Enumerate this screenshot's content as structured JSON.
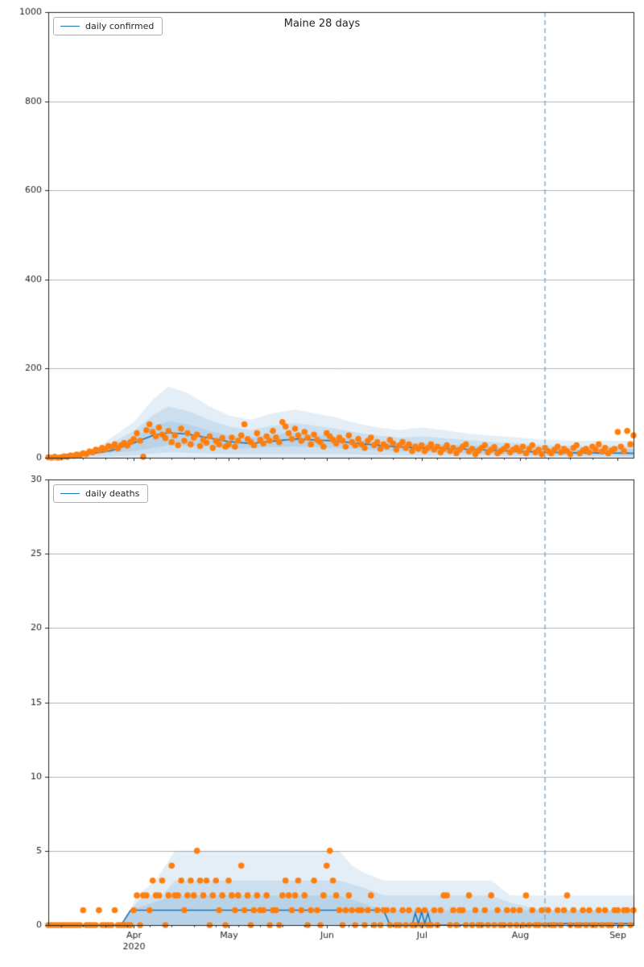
{
  "colors": {
    "line": "#1f77b4",
    "scatter": "#ff7f0e",
    "band": "#1f77b4",
    "vline": "#74a4c8",
    "grid": "#b0b0b0",
    "axis": "#262626",
    "text": "#262626"
  },
  "chart_data": [
    {
      "type": "line+scatter+band",
      "title": "Maine 28 days",
      "legend_label": "daily confirmed",
      "ylim": [
        0,
        1000
      ],
      "yticks": [
        0,
        200,
        400,
        600,
        800,
        1000
      ],
      "x_start_date": "2020-03-05",
      "x_max_day": 185,
      "x_major_ticks": [
        {
          "day": 27,
          "label": "Apr"
        },
        {
          "day": 57,
          "label": "May"
        },
        {
          "day": 88,
          "label": "Jun"
        },
        {
          "day": 118,
          "label": "Jul"
        },
        {
          "day": 149,
          "label": "Aug"
        },
        {
          "day": 180,
          "label": "Sep"
        }
      ],
      "x_year_label": "2020",
      "vline_day": 157,
      "scatter": [
        1,
        0,
        2,
        0,
        1,
        3,
        2,
        5,
        4,
        7,
        6,
        10,
        8,
        14,
        12,
        18,
        16,
        22,
        19,
        26,
        24,
        30,
        21,
        28,
        33,
        27,
        35,
        42,
        55,
        38,
        2,
        62,
        75,
        58,
        48,
        68,
        52,
        44,
        60,
        35,
        50,
        28,
        65,
        38,
        55,
        30,
        45,
        52,
        26,
        40,
        34,
        48,
        22,
        38,
        30,
        44,
        25,
        30,
        45,
        25,
        38,
        50,
        75,
        42,
        35,
        28,
        55,
        40,
        32,
        48,
        38,
        60,
        45,
        35,
        80,
        70,
        55,
        42,
        65,
        50,
        38,
        58,
        45,
        30,
        52,
        40,
        35,
        25,
        55,
        48,
        40,
        32,
        45,
        38,
        25,
        50,
        35,
        28,
        42,
        30,
        22,
        38,
        45,
        28,
        35,
        20,
        30,
        25,
        40,
        32,
        18,
        28,
        35,
        22,
        30,
        15,
        25,
        20,
        28,
        15,
        22,
        30,
        18,
        25,
        12,
        20,
        28,
        15,
        22,
        10,
        18,
        25,
        30,
        14,
        20,
        8,
        16,
        22,
        28,
        12,
        18,
        24,
        10,
        15,
        20,
        26,
        12,
        18,
        22,
        15,
        25,
        10,
        20,
        28,
        12,
        18,
        8,
        22,
        15,
        10,
        18,
        25,
        12,
        20,
        15,
        8,
        22,
        28,
        10,
        16,
        20,
        12,
        25,
        18,
        30,
        14,
        22,
        10,
        16,
        20,
        58,
        25,
        15,
        60,
        30,
        50
      ],
      "mean": [
        [
          0,
          1
        ],
        [
          10,
          5
        ],
        [
          20,
          16
        ],
        [
          27,
          33
        ],
        [
          33,
          50
        ],
        [
          38,
          56
        ],
        [
          44,
          53
        ],
        [
          51,
          44
        ],
        [
          57,
          36
        ],
        [
          64,
          32
        ],
        [
          71,
          37
        ],
        [
          78,
          42
        ],
        [
          84,
          40
        ],
        [
          90,
          38
        ],
        [
          97,
          33
        ],
        [
          104,
          28
        ],
        [
          111,
          24
        ],
        [
          118,
          22
        ],
        [
          125,
          21
        ],
        [
          132,
          19
        ],
        [
          139,
          17
        ],
        [
          149,
          14
        ],
        [
          157,
          12
        ],
        [
          168,
          11
        ],
        [
          185,
          10
        ]
      ],
      "bands": [
        {
          "upper": [
            [
              0,
              3
            ],
            [
              15,
              20
            ],
            [
              27,
              80
            ],
            [
              33,
              130
            ],
            [
              38,
              160
            ],
            [
              44,
              145
            ],
            [
              51,
              115
            ],
            [
              57,
              95
            ],
            [
              64,
              85
            ],
            [
              71,
              100
            ],
            [
              78,
              108
            ],
            [
              84,
              100
            ],
            [
              90,
              92
            ],
            [
              97,
              78
            ],
            [
              104,
              68
            ],
            [
              111,
              62
            ],
            [
              118,
              68
            ],
            [
              125,
              62
            ],
            [
              132,
              55
            ],
            [
              139,
              50
            ],
            [
              149,
              45
            ],
            [
              157,
              40
            ],
            [
              168,
              38
            ],
            [
              185,
              38
            ]
          ],
          "lower": [
            [
              0,
              0
            ],
            [
              185,
              0
            ]
          ]
        },
        {
          "upper": [
            [
              0,
              2
            ],
            [
              15,
              13
            ],
            [
              27,
              60
            ],
            [
              33,
              95
            ],
            [
              38,
              115
            ],
            [
              44,
              105
            ],
            [
              51,
              85
            ],
            [
              57,
              70
            ],
            [
              64,
              62
            ],
            [
              71,
              72
            ],
            [
              78,
              78
            ],
            [
              84,
              72
            ],
            [
              90,
              66
            ],
            [
              97,
              57
            ],
            [
              104,
              50
            ],
            [
              111,
              45
            ],
            [
              118,
              48
            ],
            [
              125,
              44
            ],
            [
              132,
              40
            ],
            [
              139,
              36
            ],
            [
              149,
              32
            ],
            [
              157,
              28
            ],
            [
              168,
              26
            ],
            [
              185,
              26
            ]
          ],
          "lower": [
            [
              0,
              0
            ],
            [
              27,
              5
            ],
            [
              38,
              12
            ],
            [
              57,
              8
            ],
            [
              90,
              8
            ],
            [
              118,
              5
            ],
            [
              185,
              2
            ]
          ]
        },
        {
          "upper": [
            [
              0,
              1
            ],
            [
              15,
              9
            ],
            [
              27,
              45
            ],
            [
              33,
              70
            ],
            [
              38,
              82
            ],
            [
              44,
              75
            ],
            [
              51,
              60
            ],
            [
              57,
              50
            ],
            [
              64,
              45
            ],
            [
              71,
              52
            ],
            [
              78,
              56
            ],
            [
              84,
              52
            ],
            [
              90,
              48
            ],
            [
              97,
              42
            ],
            [
              104,
              36
            ],
            [
              111,
              32
            ],
            [
              118,
              33
            ],
            [
              125,
              30
            ],
            [
              132,
              28
            ],
            [
              139,
              25
            ],
            [
              149,
              22
            ],
            [
              157,
              20
            ],
            [
              168,
              19
            ],
            [
              185,
              19
            ]
          ],
          "lower": [
            [
              0,
              0
            ],
            [
              27,
              15
            ],
            [
              38,
              28
            ],
            [
              51,
              25
            ],
            [
              57,
              20
            ],
            [
              78,
              25
            ],
            [
              90,
              22
            ],
            [
              118,
              12
            ],
            [
              149,
              7
            ],
            [
              185,
              5
            ]
          ]
        }
      ]
    },
    {
      "type": "line+scatter+band",
      "title": "",
      "legend_label": "daily deaths",
      "ylim": [
        0,
        30
      ],
      "yticks": [
        0,
        5,
        10,
        15,
        20,
        25,
        30
      ],
      "x_start_date": "2020-03-05",
      "x_max_day": 185,
      "x_major_ticks": [
        {
          "day": 27,
          "label": "Apr"
        },
        {
          "day": 57,
          "label": "May"
        },
        {
          "day": 88,
          "label": "Jun"
        },
        {
          "day": 118,
          "label": "Jul"
        },
        {
          "day": 149,
          "label": "Aug"
        },
        {
          "day": 180,
          "label": "Sep"
        }
      ],
      "x_year_label": "2020",
      "vline_day": 157,
      "scatter": [
        0,
        0,
        0,
        0,
        0,
        0,
        0,
        0,
        0,
        0,
        0,
        1,
        0,
        0,
        0,
        0,
        1,
        0,
        0,
        0,
        0,
        1,
        0,
        0,
        0,
        0,
        0,
        1,
        2,
        0,
        2,
        2,
        1,
        3,
        2,
        2,
        3,
        0,
        2,
        4,
        2,
        2,
        3,
        1,
        2,
        3,
        2,
        5,
        3,
        2,
        3,
        0,
        2,
        3,
        1,
        2,
        0,
        3,
        2,
        1,
        2,
        4,
        1,
        2,
        0,
        1,
        2,
        1,
        1,
        2,
        0,
        1,
        1,
        0,
        2,
        3,
        2,
        1,
        2,
        3,
        1,
        2,
        0,
        1,
        3,
        1,
        0,
        2,
        4,
        5,
        3,
        2,
        1,
        0,
        1,
        2,
        1,
        0,
        1,
        1,
        0,
        1,
        2,
        0,
        1,
        0,
        1,
        1,
        0,
        1,
        0,
        0,
        1,
        0,
        1,
        0,
        0,
        1,
        0,
        1,
        0,
        0,
        1,
        0,
        1,
        2,
        2,
        0,
        1,
        0,
        1,
        1,
        0,
        2,
        0,
        1,
        0,
        0,
        1,
        0,
        2,
        0,
        1,
        0,
        0,
        1,
        0,
        1,
        0,
        1,
        0,
        2,
        0,
        1,
        0,
        0,
        1,
        0,
        1,
        0,
        0,
        1,
        0,
        1,
        2,
        0,
        1,
        0,
        0,
        1,
        0,
        1,
        0,
        0,
        1,
        0,
        1,
        0,
        0,
        1,
        1,
        0,
        1,
        1,
        0,
        1
      ],
      "mean": [
        [
          0,
          0
        ],
        [
          23,
          0
        ],
        [
          26,
          1
        ],
        [
          106,
          1
        ],
        [
          108,
          0
        ],
        [
          115,
          0
        ],
        [
          116,
          0.8
        ],
        [
          117,
          0.1
        ],
        [
          118,
          0.9
        ],
        [
          119,
          0.1
        ],
        [
          120,
          0.8
        ],
        [
          121,
          0
        ],
        [
          149,
          0
        ],
        [
          157,
          0.1
        ],
        [
          185,
          0.1
        ]
      ],
      "bands": [
        {
          "upper": [
            [
              0,
              0
            ],
            [
              23,
              0
            ],
            [
              26,
              1
            ],
            [
              28,
              2
            ],
            [
              34,
              3
            ],
            [
              40,
              5
            ],
            [
              92,
              5
            ],
            [
              96,
              4
            ],
            [
              100,
              3.5
            ],
            [
              106,
              3
            ],
            [
              140,
              3
            ],
            [
              146,
              2
            ],
            [
              185,
              2
            ]
          ],
          "lower": [
            [
              0,
              0
            ],
            [
              185,
              0
            ]
          ]
        },
        {
          "upper": [
            [
              0,
              0
            ],
            [
              23,
              0
            ],
            [
              26,
              1
            ],
            [
              30,
              2
            ],
            [
              36,
              2
            ],
            [
              40,
              3
            ],
            [
              92,
              3
            ],
            [
              100,
              2.5
            ],
            [
              106,
              2
            ],
            [
              140,
              2
            ],
            [
              146,
              1.5
            ],
            [
              157,
              1
            ],
            [
              185,
              1
            ]
          ],
          "lower": [
            [
              0,
              0
            ],
            [
              185,
              0
            ]
          ]
        },
        {
          "upper": [
            [
              0,
              0
            ],
            [
              23,
              0
            ],
            [
              26,
              1
            ],
            [
              40,
              2
            ],
            [
              92,
              2
            ],
            [
              106,
              1
            ],
            [
              185,
              1
            ]
          ],
          "lower": [
            [
              0,
              0
            ],
            [
              185,
              0
            ]
          ]
        }
      ]
    }
  ]
}
